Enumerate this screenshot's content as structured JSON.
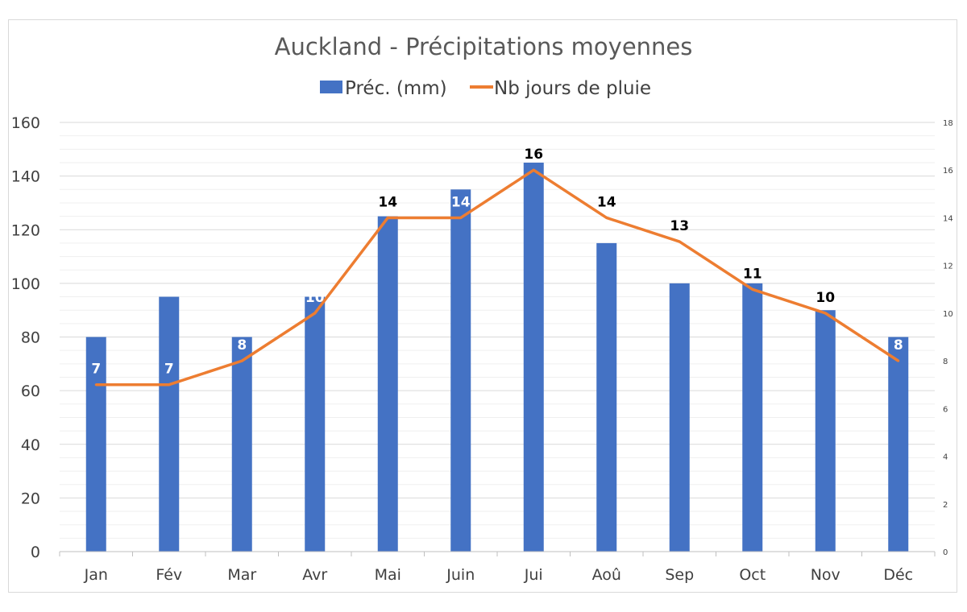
{
  "chart_data": {
    "type": "bar",
    "title": "Auckland - Précipitations moyennes",
    "categories": [
      "Jan",
      "Fév",
      "Mar",
      "Avr",
      "Mai",
      "Juin",
      "Jui",
      "Aoû",
      "Sep",
      "Oct",
      "Nov",
      "Déc"
    ],
    "series": [
      {
        "name": "Préc. (mm)",
        "type": "bar",
        "axis": "left",
        "color": "#4472C4",
        "values": [
          80,
          95,
          80,
          95,
          125,
          135,
          145,
          115,
          100,
          100,
          90,
          80
        ]
      },
      {
        "name": "Nb jours de pluie",
        "type": "line",
        "axis": "right",
        "color": "#ED7D31",
        "values": [
          7,
          7,
          8,
          10,
          14,
          14,
          16,
          14,
          13,
          11,
          10,
          8
        ],
        "data_labels": [
          "7",
          "7",
          "8",
          "10",
          "14",
          "14",
          "16",
          "14",
          "13",
          "11",
          "10",
          "8"
        ]
      }
    ],
    "ylim": [
      0,
      160
    ],
    "y_ticks": [
      0,
      20,
      40,
      60,
      80,
      100,
      120,
      140,
      160
    ],
    "y2lim": [
      0,
      18
    ],
    "y2_ticks": [
      0,
      2,
      4,
      6,
      8,
      10,
      12,
      14,
      16,
      18
    ],
    "grid": true,
    "legend_position": "top"
  }
}
